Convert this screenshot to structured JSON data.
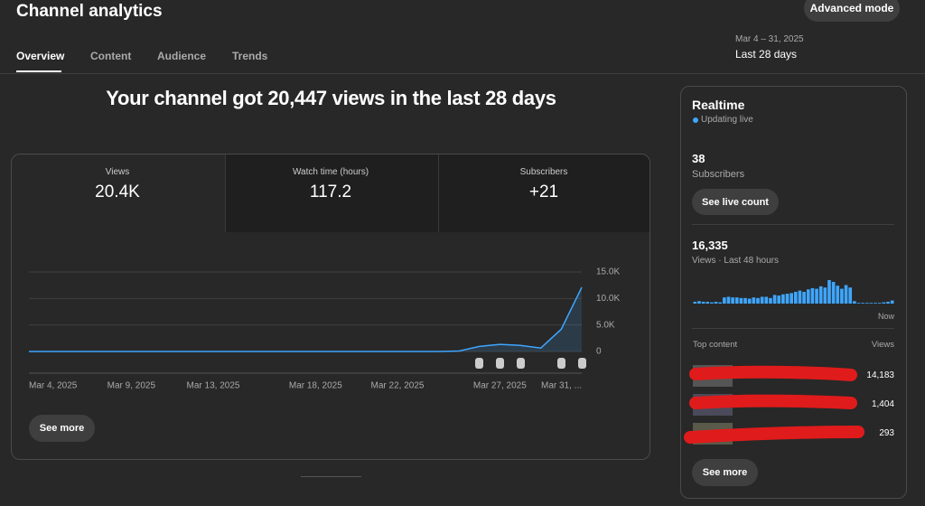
{
  "header": {
    "title": "Channel analytics",
    "button": "Advanced mode",
    "tabs": [
      "Overview",
      "Content",
      "Audience",
      "Trends"
    ],
    "date_range": "Mar 4 – 31, 2025",
    "period": "Last 28 days"
  },
  "headline": "Your channel got 20,447 views in the last 28 days",
  "metrics": [
    {
      "label": "Views",
      "value": "20.4K"
    },
    {
      "label": "Watch time (hours)",
      "value": "117.2"
    },
    {
      "label": "Subscribers",
      "value": "+21"
    }
  ],
  "views_chart": {
    "type": "line",
    "color": "#3ea6ff",
    "categories": [
      "Mar 4, 2025",
      null,
      null,
      null,
      null,
      "Mar 9, 2025",
      null,
      null,
      null,
      "Mar 13, 2025",
      null,
      null,
      null,
      null,
      "Mar 18, 2025",
      null,
      null,
      null,
      "Mar 22, 2025",
      null,
      null,
      null,
      null,
      "Mar 27, 2025",
      null,
      null,
      null,
      "Mar 31, ..."
    ],
    "values": [
      10,
      10,
      10,
      10,
      10,
      10,
      10,
      10,
      10,
      10,
      10,
      10,
      10,
      10,
      10,
      10,
      10,
      10,
      10,
      10,
      10,
      80,
      950,
      1350,
      1150,
      650,
      4200,
      12100
    ],
    "ylim": [
      0,
      15000
    ],
    "yticks": [
      0,
      {
        "value": 5000,
        "label": "5.0K"
      },
      {
        "value": 10000,
        "label": "10.0K"
      },
      {
        "value": 15000,
        "label": "15.0K"
      }
    ],
    "grid": true
  },
  "see_more": "See more",
  "realtime": {
    "title": "Realtime",
    "status": "Updating live",
    "subscribers": "38",
    "subscribers_label": "Subscribers",
    "live_button": "See live count",
    "views": "16,335",
    "views_label": "Views · Last 48 hours",
    "chart": {
      "type": "bar",
      "color": "#3ea6ff",
      "values": [
        60,
        80,
        60,
        60,
        40,
        60,
        40,
        200,
        220,
        200,
        200,
        180,
        180,
        160,
        200,
        180,
        220,
        220,
        180,
        280,
        260,
        300,
        320,
        340,
        380,
        420,
        380,
        460,
        500,
        480,
        560,
        520,
        760,
        700,
        580,
        480,
        600,
        520,
        80,
        0,
        0,
        0,
        0,
        0,
        0,
        40,
        60,
        100
      ],
      "end_label": "Now"
    },
    "top_content_label": "Top content",
    "views_col": "Views",
    "top_content": [
      "14,183",
      "1,404",
      "293"
    ],
    "see_more": "See more"
  }
}
